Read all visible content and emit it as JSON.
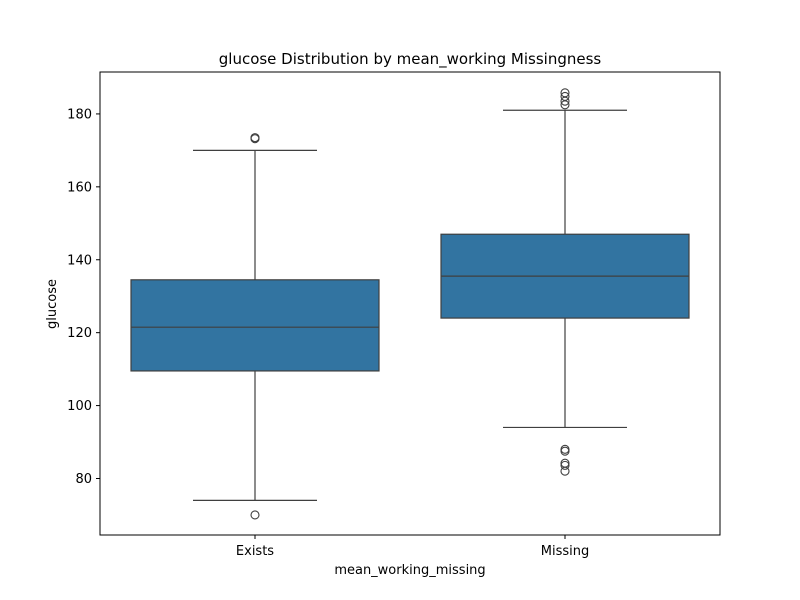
{
  "chart_data": {
    "type": "box",
    "title": "glucose Distribution by mean_working Missingness",
    "xlabel": "mean_working_missing",
    "ylabel": "glucose",
    "ylim": [
      64.5,
      191.5
    ],
    "yticks": [
      80,
      100,
      120,
      140,
      160,
      180
    ],
    "categories": [
      "Exists",
      "Missing"
    ],
    "box_color": "#3274a1",
    "grid": false,
    "boxes": [
      {
        "category": "Exists",
        "whisker_low": 74,
        "q1": 109.5,
        "median": 121.5,
        "q3": 134.5,
        "whisker_high": 170,
        "outliers": [
          173.2,
          173.5,
          70
        ]
      },
      {
        "category": "Missing",
        "whisker_low": 94,
        "q1": 124,
        "median": 135.5,
        "q3": 147,
        "whisker_high": 181,
        "outliers": [
          182.5,
          183.5,
          184.8,
          185.8,
          88,
          87.5,
          84.2,
          83.6,
          82
        ]
      }
    ]
  }
}
